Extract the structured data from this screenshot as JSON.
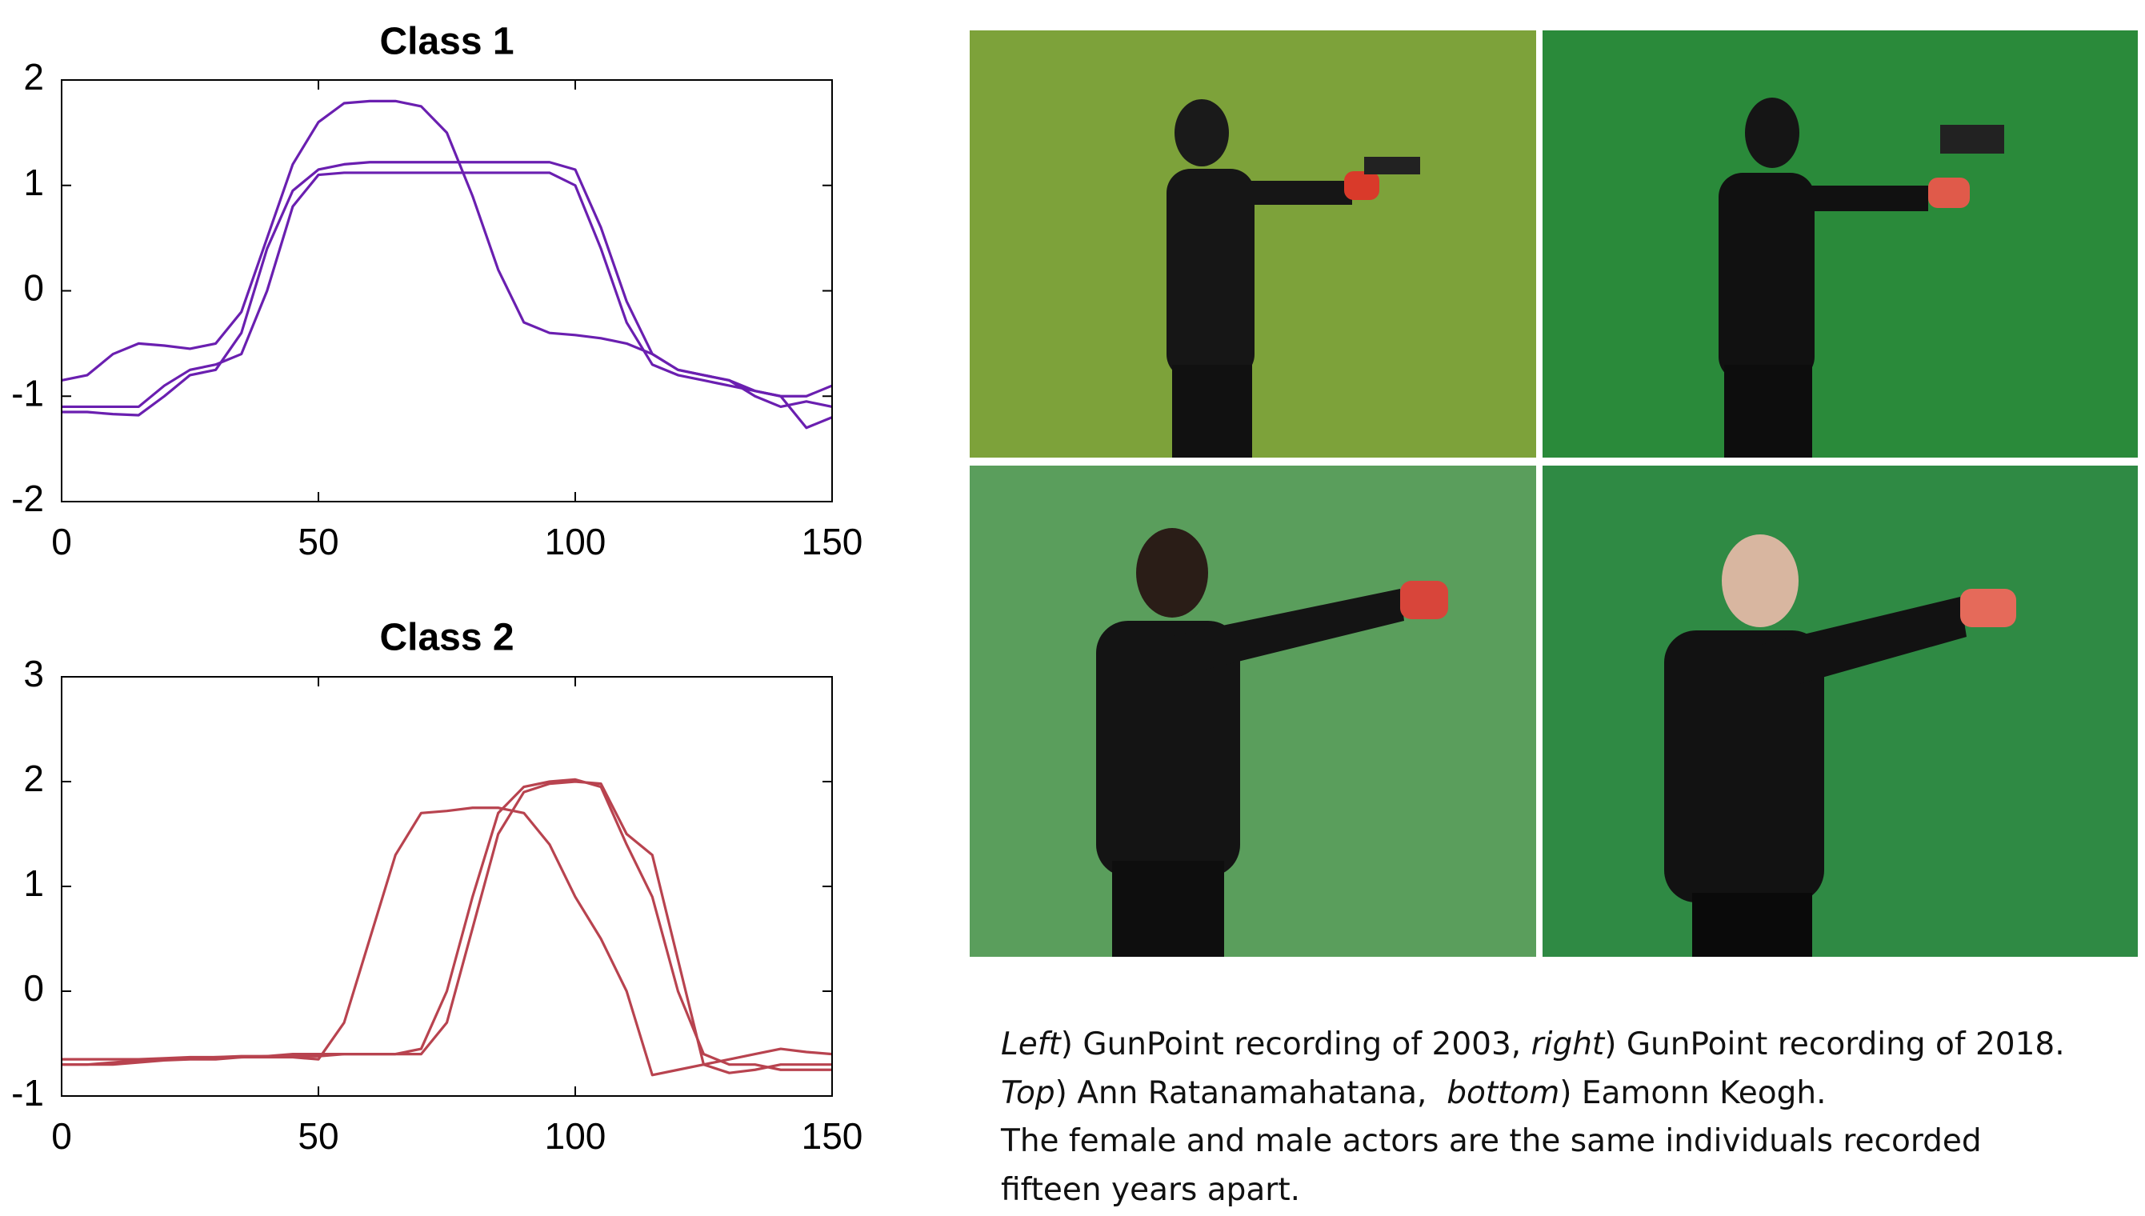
{
  "chart_data": [
    {
      "type": "line",
      "title": "Class 1",
      "x": [
        0,
        5,
        10,
        15,
        20,
        25,
        30,
        35,
        40,
        45,
        50,
        55,
        60,
        65,
        70,
        75,
        80,
        85,
        90,
        95,
        100,
        105,
        110,
        115,
        120,
        125,
        130,
        135,
        140,
        145,
        150
      ],
      "series": [
        {
          "color": "#6a1fb0",
          "values": [
            -0.85,
            -0.8,
            -0.6,
            -0.5,
            -0.52,
            -0.55,
            -0.5,
            -0.2,
            0.5,
            1.2,
            1.6,
            1.78,
            1.8,
            1.8,
            1.75,
            1.5,
            0.9,
            0.2,
            -0.3,
            -0.4,
            -0.42,
            -0.45,
            -0.5,
            -0.6,
            -0.75,
            -0.8,
            -0.85,
            -0.95,
            -1.0,
            -1.3,
            -1.2
          ]
        },
        {
          "color": "#6a1fb0",
          "values": [
            -1.1,
            -1.1,
            -1.1,
            -1.1,
            -0.9,
            -0.75,
            -0.7,
            -0.6,
            0.0,
            0.8,
            1.1,
            1.12,
            1.12,
            1.12,
            1.12,
            1.12,
            1.12,
            1.12,
            1.12,
            1.12,
            1.0,
            0.4,
            -0.3,
            -0.7,
            -0.8,
            -0.85,
            -0.9,
            -0.95,
            -1.0,
            -1.0,
            -0.9
          ]
        },
        {
          "color": "#6a1fb0",
          "values": [
            -1.15,
            -1.15,
            -1.17,
            -1.18,
            -1.0,
            -0.8,
            -0.75,
            -0.4,
            0.4,
            0.95,
            1.15,
            1.2,
            1.22,
            1.22,
            1.22,
            1.22,
            1.22,
            1.22,
            1.22,
            1.22,
            1.15,
            0.6,
            -0.1,
            -0.6,
            -0.75,
            -0.8,
            -0.85,
            -1.0,
            -1.1,
            -1.05,
            -1.1
          ]
        }
      ],
      "xlim": [
        0,
        150
      ],
      "xticks": [
        0,
        50,
        100,
        150
      ],
      "ylim": [
        -2,
        2
      ],
      "yticks": [
        -2,
        -1,
        0,
        1,
        2
      ]
    },
    {
      "type": "line",
      "title": "Class 2",
      "x": [
        0,
        5,
        10,
        15,
        20,
        25,
        30,
        35,
        40,
        45,
        50,
        55,
        60,
        65,
        70,
        75,
        80,
        85,
        90,
        95,
        100,
        105,
        110,
        115,
        120,
        125,
        130,
        135,
        140,
        145,
        150
      ],
      "series": [
        {
          "color": "#b8434f",
          "values": [
            -0.65,
            -0.65,
            -0.65,
            -0.65,
            -0.64,
            -0.63,
            -0.63,
            -0.63,
            -0.63,
            -0.63,
            -0.65,
            -0.3,
            0.5,
            1.3,
            1.7,
            1.72,
            1.75,
            1.75,
            1.7,
            1.4,
            0.9,
            0.5,
            0.0,
            -0.8,
            -0.75,
            -0.7,
            -0.65,
            -0.6,
            -0.55,
            -0.58,
            -0.6
          ]
        },
        {
          "color": "#b8434f",
          "values": [
            -0.7,
            -0.7,
            -0.68,
            -0.66,
            -0.65,
            -0.64,
            -0.63,
            -0.62,
            -0.62,
            -0.6,
            -0.6,
            -0.6,
            -0.6,
            -0.6,
            -0.55,
            0.0,
            0.9,
            1.7,
            1.95,
            2.0,
            2.02,
            1.95,
            1.4,
            0.9,
            0.0,
            -0.6,
            -0.7,
            -0.7,
            -0.75,
            -0.75,
            -0.75
          ]
        },
        {
          "color": "#b8434f",
          "values": [
            -0.7,
            -0.7,
            -0.7,
            -0.68,
            -0.66,
            -0.65,
            -0.65,
            -0.63,
            -0.62,
            -0.62,
            -0.62,
            -0.6,
            -0.6,
            -0.6,
            -0.6,
            -0.3,
            0.6,
            1.5,
            1.9,
            1.98,
            2.0,
            1.98,
            1.5,
            1.3,
            0.3,
            -0.7,
            -0.78,
            -0.75,
            -0.7,
            -0.7,
            -0.7
          ]
        }
      ],
      "xlim": [
        0,
        150
      ],
      "xticks": [
        0,
        50,
        100,
        150
      ],
      "ylim": [
        -1,
        3
      ],
      "yticks": [
        -1,
        0,
        1,
        2,
        3
      ]
    }
  ],
  "caption": [
    [
      {
        "text": "Left",
        "italic": true
      },
      {
        "text": ") GunPoint recording of 2003, "
      },
      {
        "text": "right",
        "italic": true
      },
      {
        "text": ") GunPoint recording of 2018."
      }
    ],
    [
      {
        "text": "Top",
        "italic": true
      },
      {
        "text": ") Ann Ratanamahatana,  "
      },
      {
        "text": "bottom",
        "italic": true
      },
      {
        "text": ") Eamonn Keogh."
      }
    ],
    [
      {
        "text": "The female and male actors are the same individuals recorded"
      }
    ],
    [
      {
        "text": "fifteen years apart."
      }
    ]
  ]
}
